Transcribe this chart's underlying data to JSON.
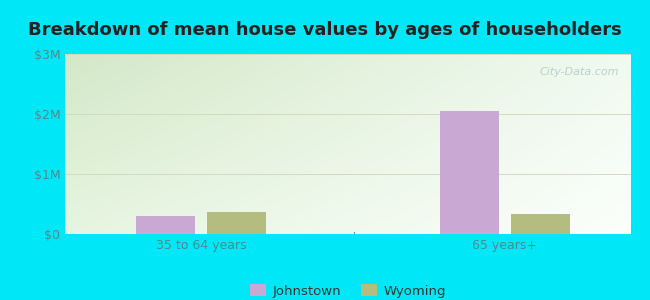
{
  "title": "Breakdown of mean house values by ages of householders",
  "categories": [
    "35 to 64 years",
    "65 years+"
  ],
  "series": {
    "Johnstown": [
      300000,
      2050000
    ],
    "Wyoming": [
      370000,
      340000
    ]
  },
  "bar_colors": {
    "Johnstown": "#c9a8d4",
    "Wyoming": "#b5bc80"
  },
  "ylim": [
    0,
    3000000
  ],
  "yticks": [
    0,
    1000000,
    2000000,
    3000000
  ],
  "ytick_labels": [
    "$0",
    "$1M",
    "$2M",
    "$3M"
  ],
  "background_outer": "#00e8f8",
  "background_inner_topleft": "#d4e8c8",
  "background_inner_right": "#f0f8f0",
  "background_inner_bottom": "#e8f5e2",
  "watermark": "City-Data.com",
  "title_fontsize": 13,
  "legend_fontsize": 9.5,
  "tick_label_color": "#4a8a8a",
  "cat_label_color": "#4a8a8a",
  "bar_width": 0.28,
  "positions": [
    0.55,
    2.0
  ],
  "xlim": [
    -0.1,
    2.6
  ],
  "grid_color": "#d8d8c0",
  "divider_x": 1.28
}
